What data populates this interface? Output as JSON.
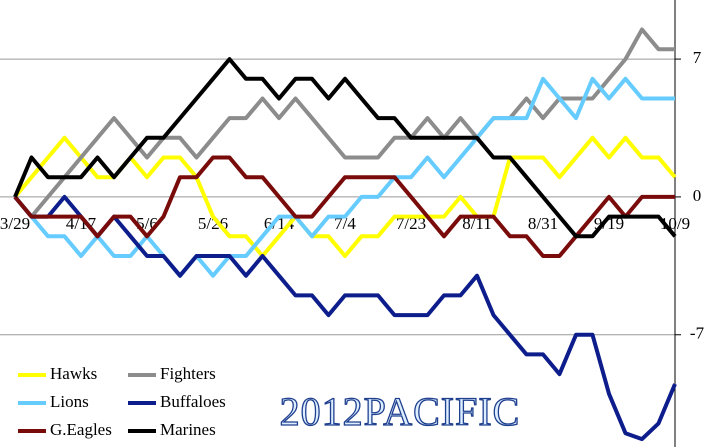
{
  "chart_data": {
    "type": "line",
    "title": "2012PACIFIC",
    "categories": [
      "3/29",
      null,
      null,
      null,
      "4/17",
      null,
      null,
      null,
      "5/6",
      null,
      null,
      null,
      "5/26",
      null,
      null,
      null,
      "6/14",
      null,
      null,
      null,
      "7/4",
      null,
      null,
      null,
      "7/23",
      null,
      null,
      null,
      "8/11",
      null,
      null,
      null,
      "8/31",
      null,
      null,
      null,
      "9/19",
      null,
      null,
      null,
      "10/9"
    ],
    "series": [
      {
        "name": "Hawks",
        "color": "#ffff00",
        "values": [
          0,
          1,
          2,
          3,
          2,
          1,
          1,
          2,
          1,
          2,
          2,
          1,
          -1,
          -2,
          -2,
          -3,
          -2,
          -1,
          -2,
          -2,
          -3,
          -2,
          -2,
          -1,
          -1,
          -1,
          -1,
          0,
          -1,
          -1,
          2,
          2,
          2,
          1,
          2,
          3,
          2,
          3,
          2,
          2,
          1
        ]
      },
      {
        "name": "Fighters",
        "color": "#8c8c8c",
        "values": [
          0,
          -1,
          0,
          1,
          2,
          3,
          4,
          3,
          2,
          3,
          3,
          2,
          3,
          4,
          4,
          5,
          4,
          5,
          4,
          3,
          2,
          2,
          2,
          3,
          3,
          4,
          3,
          4,
          3,
          4,
          4,
          5,
          4,
          5,
          5,
          5,
          6,
          7,
          8.5,
          7.5,
          7.5
        ]
      },
      {
        "name": "Lions",
        "color": "#66ccff",
        "values": [
          0,
          -1,
          -2,
          -2,
          -3,
          -2,
          -3,
          -3,
          -2,
          -3,
          -4,
          -3,
          -4,
          -3,
          -3,
          -2,
          -1,
          -1,
          -2,
          -1,
          -1,
          0,
          0,
          1,
          1,
          2,
          1,
          2,
          3,
          4,
          4,
          4,
          6,
          5,
          4,
          6,
          5,
          6,
          5,
          5,
          5
        ]
      },
      {
        "name": "Buffaloes",
        "color": "#0d1d8c",
        "values": [
          0,
          -1,
          -1,
          0,
          -1,
          -2,
          -1,
          -2,
          -3,
          -3,
          -4,
          -3,
          -3,
          -3,
          -4,
          -3,
          -4,
          -5,
          -5,
          -6,
          -5,
          -5,
          -5,
          -6,
          -6,
          -6,
          -5,
          -5,
          -4,
          -6,
          -7,
          -8,
          -8,
          -9,
          -7,
          -7,
          -10,
          -12,
          -12.3,
          -11.5,
          -9.5
        ]
      },
      {
        "name": "G.Eagles",
        "color": "#7a0b0b",
        "values": [
          0,
          -1,
          -1,
          -1,
          -1,
          -2,
          -1,
          -1,
          -2,
          -1,
          1,
          1,
          2,
          2,
          1,
          1,
          0,
          -1,
          -1,
          0,
          1,
          1,
          1,
          1,
          0,
          -1,
          -2,
          -1,
          -1,
          -1,
          -2,
          -2,
          -3,
          -3,
          -2,
          -1,
          0,
          -1,
          0,
          0,
          0
        ]
      },
      {
        "name": "Marines",
        "color": "#000000",
        "values": [
          0,
          2,
          1,
          1,
          1,
          2,
          1,
          2,
          3,
          3,
          4,
          5,
          6,
          7,
          6,
          6,
          5,
          6,
          6,
          5,
          6,
          5,
          4,
          4,
          3,
          3,
          3,
          3,
          3,
          2,
          2,
          1,
          0,
          -1,
          -2,
          -2,
          -1,
          -1,
          -1,
          -1,
          -2
        ]
      }
    ],
    "ylim": [
      -12.7,
      10
    ],
    "yticks": [
      7,
      0,
      -7
    ],
    "grid": true
  }
}
